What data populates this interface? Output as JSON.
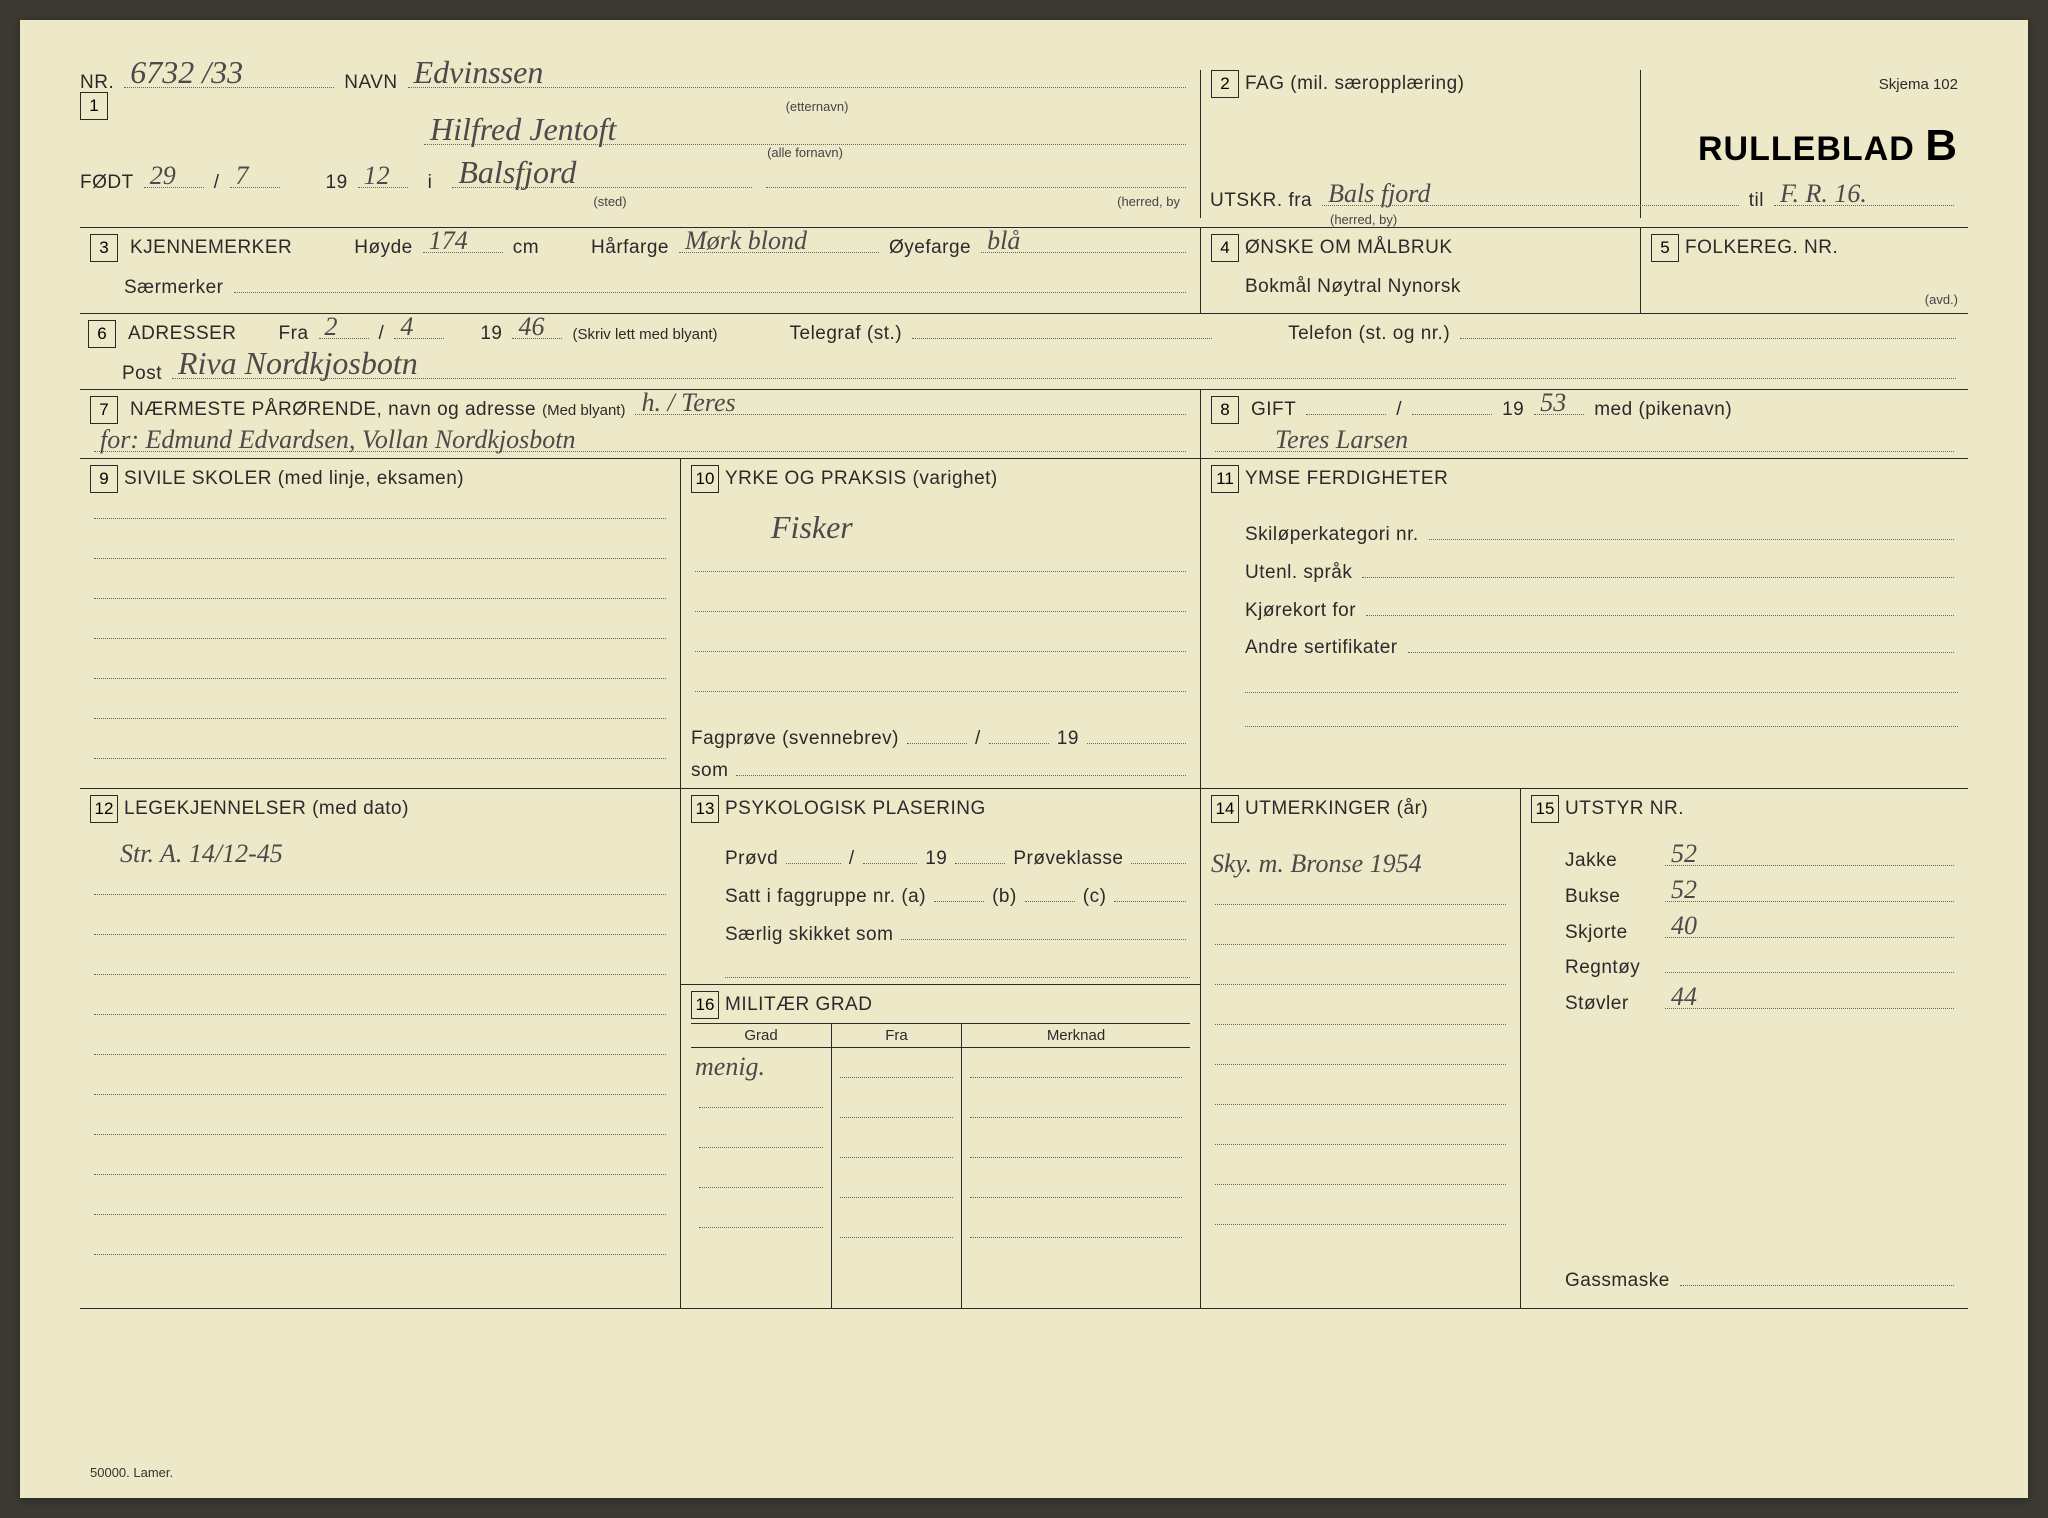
{
  "meta": {
    "skjema": "Skjema 102",
    "title": "RULLEBLAD",
    "title_suffix": "B",
    "footer": "50000. Lamer."
  },
  "box1": {
    "nr_label": "NR.",
    "nr_value": "6732 /33",
    "navn_label": "NAVN",
    "etternavn": "Edvinssen",
    "etternavn_sub": "(etternavn)",
    "fornavn": "Hilfred Jentoft",
    "fornavn_sub": "(alle fornavn)",
    "fodt_label": "FØDT",
    "fodt_day": "29",
    "fodt_slash": "7",
    "fodt_year_prefix": "19",
    "fodt_year": "12",
    "fodt_i": "i",
    "sted": "Balsfjord",
    "sted_sub": "(sted)",
    "herred_sub": "(herred, by"
  },
  "box2": {
    "label": "FAG (mil. særopplæring)",
    "utskr_label": "UTSKR. fra",
    "utskr_fra": "Bals fjord",
    "herred_sub": "(herred, by)",
    "til_label": "til",
    "til_value": "F. R. 16."
  },
  "box3": {
    "label": "KJENNEMERKER",
    "hoyde_label": "Høyde",
    "hoyde": "174",
    "cm": "cm",
    "harfarge_label": "Hårfarge",
    "harfarge": "Mørk blond",
    "oyefarge_label": "Øyefarge",
    "oyefarge": "blå",
    "sarmerker_label": "Særmerker"
  },
  "box4": {
    "label": "ØNSKE OM MÅLBRUK",
    "opts": "Bokmål   Nøytral   Nynorsk"
  },
  "box5": {
    "label": "FOLKEREG. NR.",
    "avd_sub": "(avd.)"
  },
  "box6": {
    "label": "ADRESSER",
    "fra_label": "Fra",
    "fra_day": "2",
    "fra_month": "4",
    "fra_year_prefix": "19",
    "fra_year": "46",
    "skriv": "(Skriv lett med blyant)",
    "telegraf_label": "Telegraf (st.)",
    "telefon_label": "Telefon (st. og nr.)",
    "post_label": "Post",
    "post_value": "Riva Nordkjosbotn"
  },
  "box7": {
    "label": "NÆRMESTE PÅRØRENDE, navn og adresse",
    "med_blyant": "(Med blyant)",
    "line1": "h. / Teres",
    "line2": "for: Edmund Edvardsen, Vollan Nordkjosbotn"
  },
  "box8": {
    "label": "GIFT",
    "year_prefix": "19",
    "year": "53",
    "med_label": "med (pikenavn)",
    "value": "Teres Larsen"
  },
  "box9": {
    "label": "SIVILE SKOLER (med linje, eksamen)"
  },
  "box10": {
    "label": "YRKE OG PRAKSIS (varighet)",
    "value": "Fisker",
    "fagprove": "Fagprøve (svennebrev)",
    "fag_year_prefix": "19",
    "som": "som"
  },
  "box11": {
    "label": "YMSE FERDIGHETER",
    "ski": "Skiløperkategori nr.",
    "utenl": "Utenl. språk",
    "kjorekort": "Kjørekort for",
    "andre": "Andre sertifikater"
  },
  "box12": {
    "label": "LEGEKJENNELSER (med dato)",
    "value": "Str. A. 14/12-45"
  },
  "box13": {
    "label": "PSYKOLOGISK PLASERING",
    "provd": "Prøvd",
    "year_prefix": "19",
    "proveklasse": "Prøveklasse",
    "satt": "Satt i faggruppe nr. (a)",
    "b": "(b)",
    "c": "(c)",
    "saerlig": "Særlig skikket som"
  },
  "box14": {
    "label": "UTMERKINGER (år)",
    "value": "Sky. m. Bronse 1954"
  },
  "box15": {
    "label": "UTSTYR NR.",
    "items": [
      {
        "label": "Jakke",
        "value": "52"
      },
      {
        "label": "Bukse",
        "value": "52"
      },
      {
        "label": "Skjorte",
        "value": "40"
      },
      {
        "label": "Regntøy",
        "value": ""
      },
      {
        "label": "Støvler",
        "value": "44"
      }
    ],
    "gassmaske": "Gassmaske"
  },
  "box16": {
    "label": "MILITÆR GRAD",
    "cols": {
      "grad": "Grad",
      "fra": "Fra",
      "merknad": "Merknad"
    },
    "grad_value": "menig."
  }
}
